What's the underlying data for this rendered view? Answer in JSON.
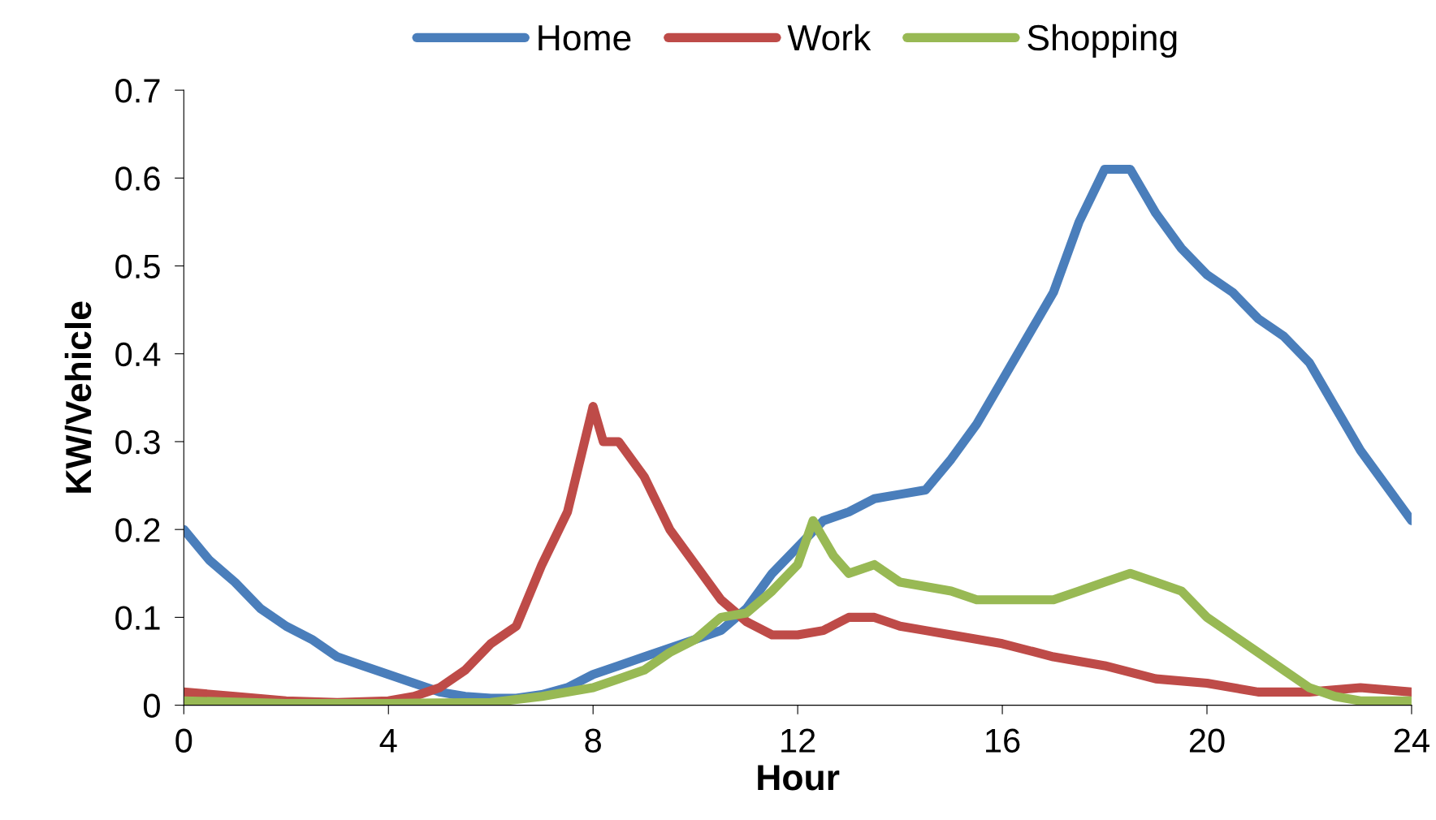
{
  "chart_data": {
    "type": "line",
    "xlabel": "Hour",
    "ylabel": "KW/Vehicle",
    "xlim": [
      0,
      24
    ],
    "xticks": [
      0,
      4,
      8,
      12,
      16,
      20,
      24
    ],
    "ylim": [
      0,
      0.7
    ],
    "yticks": [
      0,
      0.1,
      0.2,
      0.3,
      0.4,
      0.5,
      0.6,
      0.7
    ],
    "grid": false,
    "legend": "top",
    "marker": "none",
    "line_style": "solid",
    "series": [
      {
        "name": "Home",
        "color": "#4a7ebb",
        "x": [
          0,
          0.5,
          1,
          1.5,
          2,
          2.5,
          3,
          3.5,
          4,
          4.5,
          5,
          5.5,
          6,
          6.5,
          7,
          7.5,
          8,
          8.5,
          9,
          9.5,
          10,
          10.5,
          11,
          11.5,
          12,
          12.5,
          13,
          13.5,
          14,
          14.5,
          15,
          15.5,
          16,
          16.5,
          17,
          17.5,
          18,
          18.5,
          19,
          19.5,
          20,
          20.5,
          21,
          21.5,
          22,
          22.5,
          23,
          23.5,
          24
        ],
        "values": [
          0.2,
          0.165,
          0.14,
          0.11,
          0.09,
          0.075,
          0.055,
          0.045,
          0.035,
          0.025,
          0.015,
          0.01,
          0.008,
          0.008,
          0.012,
          0.02,
          0.035,
          0.045,
          0.055,
          0.065,
          0.075,
          0.085,
          0.11,
          0.15,
          0.18,
          0.21,
          0.22,
          0.235,
          0.24,
          0.245,
          0.28,
          0.32,
          0.37,
          0.42,
          0.47,
          0.55,
          0.61,
          0.61,
          0.56,
          0.52,
          0.49,
          0.47,
          0.44,
          0.42,
          0.39,
          0.34,
          0.29,
          0.25,
          0.21
        ]
      },
      {
        "name": "Work",
        "color": "#be4b48",
        "x": [
          0,
          1,
          2,
          3,
          4,
          4.5,
          5,
          5.5,
          6,
          6.5,
          7,
          7.5,
          8,
          8.2,
          8.5,
          9,
          9.5,
          10,
          10.5,
          11,
          11.5,
          12,
          12.5,
          13,
          13.5,
          14,
          14.5,
          15,
          16,
          17,
          18,
          19,
          20,
          21,
          22,
          23,
          24
        ],
        "values": [
          0.015,
          0.01,
          0.005,
          0.003,
          0.005,
          0.01,
          0.02,
          0.04,
          0.07,
          0.09,
          0.16,
          0.22,
          0.34,
          0.3,
          0.3,
          0.26,
          0.2,
          0.16,
          0.12,
          0.095,
          0.08,
          0.08,
          0.085,
          0.1,
          0.1,
          0.09,
          0.085,
          0.08,
          0.07,
          0.055,
          0.045,
          0.03,
          0.025,
          0.015,
          0.015,
          0.02,
          0.015
        ]
      },
      {
        "name": "Shopping",
        "color": "#98b954",
        "x": [
          0,
          2,
          4,
          6,
          7,
          8,
          8.5,
          9,
          9.5,
          10,
          10.5,
          11,
          11.5,
          12,
          12.3,
          12.7,
          13,
          13.5,
          14,
          15,
          15.5,
          16,
          17,
          17.5,
          18,
          18.5,
          19,
          19.5,
          20,
          20.5,
          21,
          21.5,
          22,
          22.5,
          23,
          24
        ],
        "values": [
          0.005,
          0.002,
          0.002,
          0.003,
          0.01,
          0.02,
          0.03,
          0.04,
          0.06,
          0.075,
          0.1,
          0.105,
          0.13,
          0.16,
          0.21,
          0.17,
          0.15,
          0.16,
          0.14,
          0.13,
          0.12,
          0.12,
          0.12,
          0.13,
          0.14,
          0.15,
          0.14,
          0.13,
          0.1,
          0.08,
          0.06,
          0.04,
          0.02,
          0.01,
          0.005,
          0.005
        ]
      }
    ]
  }
}
